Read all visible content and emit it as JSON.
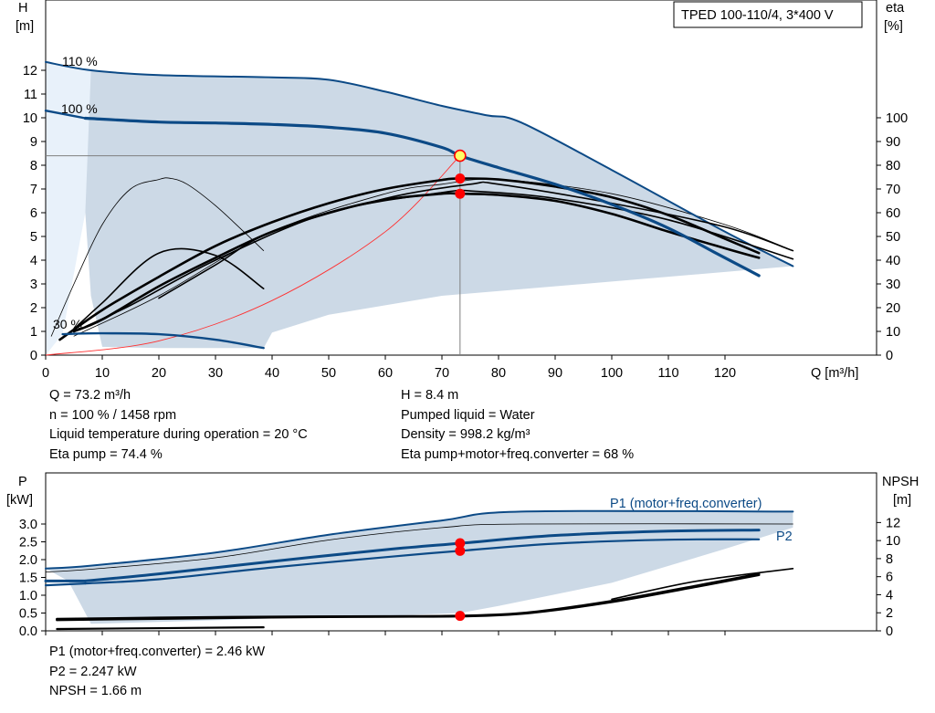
{
  "chart_data": [
    {
      "type": "line",
      "title": "TPED 100-110/4, 3*400 V",
      "xlabel": "Q [m³/h]",
      "ylabel_left_line1": "H",
      "ylabel_left_line2": "[m]",
      "ylabel_right_line1": "eta",
      "ylabel_right_line2": "[%]",
      "xlim": [
        0,
        140
      ],
      "ylim_left": [
        0,
        13
      ],
      "ylim_right": [
        0,
        130
      ],
      "x_ticks": [
        0,
        10,
        20,
        30,
        40,
        50,
        60,
        70,
        80,
        90,
        100,
        110,
        120
      ],
      "y_left_ticks": [
        0,
        1,
        2,
        3,
        4,
        5,
        6,
        7,
        8,
        9,
        10,
        11,
        12
      ],
      "y_right_ticks": [
        0,
        10,
        20,
        30,
        40,
        50,
        60,
        70,
        80,
        90,
        100
      ],
      "curve_labels": [
        "110 %",
        "100 %",
        "30 %"
      ],
      "operating_point": {
        "Q": 73.2,
        "H": 8.4,
        "eta_pump": 74.4,
        "eta_total": 68
      },
      "head_series": [
        {
          "x": [
            7,
            20,
            30,
            40,
            50,
            60,
            70,
            73.2,
            80,
            90,
            100,
            110,
            118,
            122,
            126
          ],
          "y": [
            9.98,
            9.82,
            9.78,
            9.72,
            9.6,
            9.35,
            8.75,
            8.4,
            7.9,
            7.2,
            6.35,
            5.35,
            4.35,
            3.85,
            3.35
          ]
        },
        {
          "x": [
            3,
            5,
            10,
            20,
            30,
            38.5
          ],
          "y": [
            0.88,
            0.9,
            0.92,
            0.88,
            0.65,
            0.3
          ]
        },
        {
          "x": [
            0,
            7
          ],
          "y": [
            10.3,
            9.98
          ]
        }
      ],
      "head_max_series": [
        {
          "x": [
            0,
            8,
            20,
            40,
            50,
            60,
            70,
            78,
            84,
            100,
            120,
            132
          ],
          "y": [
            12.35,
            12.0,
            11.8,
            11.7,
            11.6,
            11.1,
            10.5,
            10.1,
            9.8,
            7.8,
            5.2,
            3.75
          ]
        }
      ],
      "envelope": {
        "upper": {
          "x": [
            0,
            8,
            20,
            40,
            50,
            60,
            70,
            78,
            84,
            100,
            120,
            132
          ],
          "y": [
            12.35,
            12.0,
            11.8,
            11.7,
            11.6,
            11.1,
            10.5,
            10.1,
            9.8,
            7.8,
            5.2,
            3.75
          ]
        },
        "lower": {
          "x": [
            132,
            100,
            70,
            50,
            40,
            38.5,
            30,
            20,
            10,
            8,
            7,
            5,
            3
          ],
          "y": [
            3.75,
            3.1,
            2.5,
            1.7,
            0.95,
            0.3,
            0.3,
            0.3,
            0.35,
            2.5,
            6,
            9.5,
            12.0
          ]
        }
      },
      "eta_series": [
        {
          "name": "",
          "x": [
            2.5,
            10,
            20,
            30,
            40,
            50,
            60,
            70,
            73.2,
            80,
            90,
            100,
            110,
            120,
            126
          ],
          "y": [
            6.5,
            19,
            33,
            46,
            56,
            64,
            70,
            73.8,
            74.4,
            74,
            71,
            66.5,
            59,
            49,
            43
          ]
        },
        {
          "name": "",
          "x": [
            5,
            10,
            20,
            30,
            40,
            50,
            60,
            70,
            73.2,
            80,
            90,
            100,
            110,
            120,
            126
          ],
          "y": [
            10,
            15,
            29,
            41,
            52,
            60,
            65.5,
            68,
            68,
            67.5,
            65,
            59.5,
            52,
            45,
            41
          ]
        },
        {
          "name": "",
          "x": [
            7,
            15,
            30,
            50,
            70,
            76,
            90,
            110,
            132
          ],
          "y": [
            12,
            21,
            40,
            60,
            68.5,
            69,
            66,
            57,
            40.5
          ]
        },
        {
          "name": "",
          "x": [
            5,
            10,
            20,
            30,
            38.5
          ],
          "y": [
            11,
            22,
            43,
            42,
            28
          ]
        },
        {
          "name": "",
          "x": [
            20,
            30,
            40,
            60,
            75,
            80,
            100,
            120,
            132
          ],
          "y": [
            24,
            38,
            52,
            66,
            72,
            72,
            64,
            54,
            44
          ]
        }
      ],
      "eta_thin_series": [
        {
          "x": [
            1,
            5,
            10,
            15,
            20,
            22,
            25,
            30,
            35,
            38.5
          ],
          "y": [
            8,
            30,
            55,
            70,
            74,
            74.5,
            72,
            63,
            52,
            44
          ]
        },
        {
          "x": [
            5,
            20,
            40,
            60,
            70,
            80,
            100,
            120,
            132
          ],
          "y": [
            8,
            25,
            52,
            68,
            72,
            74,
            68,
            55,
            44
          ]
        }
      ],
      "system_curve": {
        "x": [
          0,
          20,
          40,
          60,
          73.2
        ],
        "y": [
          0,
          0.6,
          2.3,
          5.2,
          8.4
        ]
      },
      "info_text": [
        "Q = 73.2 m³/h",
        "n = 100 % / 1458 rpm",
        "Liquid temperature during operation = 20 °C",
        "Eta pump = 74.4 %",
        "H = 8.4 m",
        "Pumped liquid = Water",
        "Density = 998.2 kg/m³",
        "Eta pump+motor+freq.converter = 68 %"
      ]
    },
    {
      "type": "line",
      "ylabel_left_line1": "P",
      "ylabel_left_line2": "[kW]",
      "ylabel_right_line1": "NPSH",
      "ylabel_right_line2": "[m]",
      "xlim": [
        0,
        140
      ],
      "ylim_left": [
        0,
        3.5
      ],
      "ylim_right": [
        0,
        14
      ],
      "y_left_ticks": [
        0.0,
        0.5,
        1.0,
        1.5,
        2.0,
        2.5,
        3.0
      ],
      "y_left_tick_labels": [
        "0.0",
        "0.5",
        "1.0",
        "1.5",
        "2.0",
        "2.5",
        "3.0"
      ],
      "y_right_ticks": [
        0,
        2,
        4,
        6,
        8,
        10,
        12
      ],
      "series_labels": [
        "P1 (motor+freq.converter)",
        "P2"
      ],
      "operating_point": {
        "Q": 73.2,
        "P1": 2.46,
        "P2": 2.247,
        "NPSH": 1.66
      },
      "p1_series": [
        {
          "x": [
            7,
            20,
            40,
            60,
            73.2,
            90,
            110,
            126
          ],
          "y": [
            1.4,
            1.6,
            1.95,
            2.28,
            2.46,
            2.68,
            2.8,
            2.83
          ]
        },
        {
          "x": [
            0,
            7
          ],
          "y": [
            1.4,
            1.4
          ]
        }
      ],
      "p2_series": [
        {
          "x": [
            7,
            20,
            40,
            60,
            73.2,
            90,
            110,
            126
          ],
          "y": [
            1.33,
            1.45,
            1.78,
            2.07,
            2.247,
            2.45,
            2.56,
            2.57
          ]
        },
        {
          "x": [
            0,
            7
          ],
          "y": [
            1.28,
            1.33
          ]
        }
      ],
      "p_max_series": [
        {
          "x": [
            0,
            8,
            30,
            50,
            70,
            84,
            132
          ],
          "y": [
            1.75,
            1.83,
            2.2,
            2.7,
            3.1,
            3.35,
            3.35
          ]
        },
        {
          "x": [
            0,
            8,
            30,
            50,
            70,
            84,
            132
          ],
          "y": [
            1.65,
            1.73,
            2.05,
            2.55,
            2.9,
            3.0,
            3.0
          ]
        }
      ],
      "p_low_series": [
        {
          "x": [
            2,
            38.5
          ],
          "y": [
            0.05,
            0.1
          ]
        }
      ],
      "npsh_series": [
        {
          "x": [
            2,
            20,
            40,
            60,
            73.2,
            85,
            100,
            115,
            126
          ],
          "y": [
            1.3,
            1.45,
            1.55,
            1.6,
            1.66,
            2.0,
            3.3,
            5.0,
            6.3
          ]
        },
        {
          "x": [
            2,
            20,
            40,
            60,
            73.2,
            85,
            100,
            115,
            126
          ],
          "y": [
            1.2,
            1.35,
            1.5,
            1.58,
            1.62,
            1.95,
            3.2,
            4.9,
            6.2
          ]
        },
        {
          "x": [
            100,
            115,
            132
          ],
          "y": [
            3.5,
            5.5,
            6.9
          ]
        }
      ],
      "envelope": {
        "upper": {
          "x": [
            0,
            8,
            30,
            50,
            70,
            84,
            132
          ],
          "y": [
            1.75,
            1.83,
            2.2,
            2.7,
            3.1,
            3.35,
            3.35
          ]
        },
        "lower": {
          "x": [
            132,
            120,
            100,
            80,
            73.2,
            60,
            40,
            20,
            8,
            6,
            4
          ],
          "y": [
            2.9,
            2.3,
            1.35,
            0.7,
            0.5,
            0.42,
            0.35,
            0.25,
            0.2,
            0.8,
            1.4
          ]
        }
      },
      "info_text": [
        "P1 (motor+freq.converter) = 2.46 kW",
        "P2 = 2.247 kW",
        "NPSH = 1.66 m"
      ]
    }
  ],
  "colors": {
    "blue": "#0c4a86",
    "envelope": "#ccd9e6",
    "envelope_light": "#e8f1fa",
    "axis": "#000000",
    "marker": "#ff0000",
    "marker_hl": "#ffff66",
    "system": "#ff3030",
    "guide": "#7f7f7f"
  }
}
